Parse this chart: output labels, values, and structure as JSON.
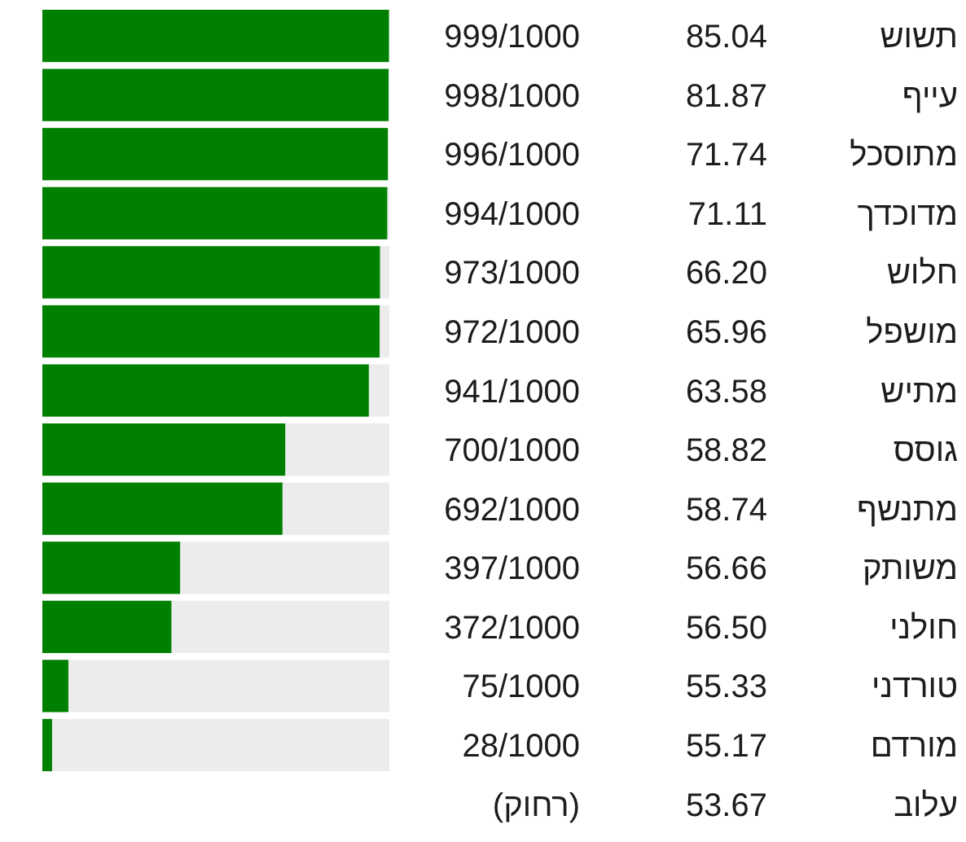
{
  "chart_data": {
    "type": "bar",
    "orientation": "horizontal",
    "categories": [
      "תשוש",
      "עייף",
      "מתוסכל",
      "מדוכדך",
      "חלוש",
      "מושפל",
      "מתיש",
      "גוסס",
      "מתנשף",
      "משותק",
      "חולני",
      "טורדני",
      "מורדם",
      "עלוב"
    ],
    "values": [
      999,
      998,
      996,
      994,
      973,
      972,
      941,
      700,
      692,
      397,
      372,
      75,
      28,
      null
    ],
    "value_labels": [
      "999/1000",
      "998/1000",
      "996/1000",
      "994/1000",
      "973/1000",
      "972/1000",
      "941/1000",
      "700/1000",
      "692/1000",
      "397/1000",
      "372/1000",
      "75/1000",
      "28/1000",
      "(רחוק)"
    ],
    "color": "#008000",
    "xlim": [
      0,
      1000
    ],
    "tick_labels": "y",
    "annotations": [
      "85.04",
      "81.87",
      "71.74",
      "71.11",
      "66.20",
      "65.96",
      "63.58",
      "58.82",
      "58.74",
      "56.66",
      "56.50",
      "55.33",
      "55.17",
      "53.67"
    ]
  }
}
